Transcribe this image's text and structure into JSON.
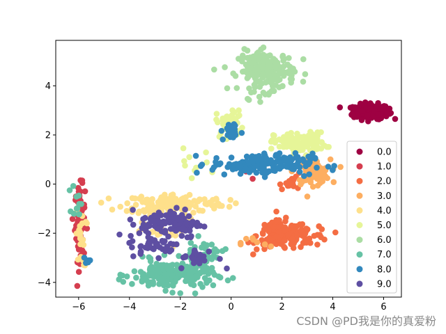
{
  "watermark": "CSDN @PD我是你的真爱粉",
  "colors": {
    "0.0": "#9e0142",
    "1.0": "#d53e4f",
    "2.0": "#f46d43",
    "3.0": "#fdae61",
    "4.0": "#fee08b",
    "5.0": "#e6f598",
    "6.0": "#abdda4",
    "7.0": "#66c2a5",
    "8.0": "#3288bd",
    "9.0": "#5e4fa2"
  },
  "chart_data": {
    "type": "scatter",
    "title": "",
    "xlabel": "",
    "ylabel": "",
    "xlim": [
      -6.9,
      6.7
    ],
    "ylim": [
      -4.6,
      5.85
    ],
    "xticks": [
      -6,
      -4,
      -2,
      0,
      2,
      4,
      6
    ],
    "yticks": [
      -4,
      -2,
      0,
      2,
      4
    ],
    "xtick_labels": [
      "−6",
      "−4",
      "−2",
      "0",
      "2",
      "4",
      "6"
    ],
    "ytick_labels": [
      "−4",
      "−2",
      "0",
      "2",
      "4"
    ],
    "legend": {
      "placement": "lower right"
    },
    "series": [
      {
        "name": "0.0",
        "clusters": [
          {
            "cx": 5.5,
            "cy": 2.95,
            "sx": 0.35,
            "sy": 0.15,
            "n": 220
          }
        ]
      },
      {
        "name": "1.0",
        "clusters": [
          {
            "cx": -5.95,
            "cy": -1.6,
            "sx": 0.1,
            "sy": 0.75,
            "n": 90
          },
          {
            "cx": 0.4,
            "cy": 0.6,
            "sx": 0.2,
            "sy": 0.15,
            "n": 6
          }
        ]
      },
      {
        "name": "2.0",
        "clusters": [
          {
            "cx": 2.0,
            "cy": -2.1,
            "sx": 0.5,
            "sy": 0.3,
            "n": 130
          },
          {
            "cx": 2.9,
            "cy": -2.1,
            "sx": 0.5,
            "sy": 0.2,
            "n": 40
          },
          {
            "cx": 2.5,
            "cy": 0.1,
            "sx": 0.3,
            "sy": 0.15,
            "n": 15
          }
        ]
      },
      {
        "name": "3.0",
        "clusters": [
          {
            "cx": 3.2,
            "cy": 0.5,
            "sx": 0.35,
            "sy": 0.25,
            "n": 90
          },
          {
            "cx": 1.0,
            "cy": -2.4,
            "sx": 0.3,
            "sy": 0.15,
            "n": 8
          }
        ]
      },
      {
        "name": "4.0",
        "clusters": [
          {
            "cx": -2.2,
            "cy": -0.8,
            "sx": 1.0,
            "sy": 0.2,
            "n": 140
          },
          {
            "cx": -3.0,
            "cy": -1.6,
            "sx": 0.6,
            "sy": 0.5,
            "n": 40
          },
          {
            "cx": -5.9,
            "cy": -2.2,
            "sx": 0.1,
            "sy": 0.6,
            "n": 20
          }
        ]
      },
      {
        "name": "5.0",
        "clusters": [
          {
            "cx": 2.7,
            "cy": 1.7,
            "sx": 0.5,
            "sy": 0.2,
            "n": 130
          },
          {
            "cx": 0.0,
            "cy": 2.5,
            "sx": 0.3,
            "sy": 0.3,
            "n": 35
          },
          {
            "cx": -1.6,
            "cy": 0.8,
            "sx": 0.4,
            "sy": 0.3,
            "n": 10
          }
        ]
      },
      {
        "name": "6.0",
        "clusters": [
          {
            "cx": 1.4,
            "cy": 4.6,
            "sx": 0.55,
            "sy": 0.4,
            "n": 200
          }
        ]
      },
      {
        "name": "7.0",
        "clusters": [
          {
            "cx": -2.3,
            "cy": -3.7,
            "sx": 0.8,
            "sy": 0.3,
            "n": 200
          },
          {
            "cx": -1.1,
            "cy": -2.9,
            "sx": 0.4,
            "sy": 0.3,
            "n": 40
          },
          {
            "cx": -6.05,
            "cy": -0.7,
            "sx": 0.1,
            "sy": 0.35,
            "n": 12
          }
        ]
      },
      {
        "name": "8.0",
        "clusters": [
          {
            "cx": 1.2,
            "cy": 0.8,
            "sx": 1.0,
            "sy": 0.22,
            "n": 160
          },
          {
            "cx": 0.0,
            "cy": 2.1,
            "sx": 0.2,
            "sy": 0.2,
            "n": 25
          },
          {
            "cx": -5.6,
            "cy": -3.1,
            "sx": 0.2,
            "sy": 0.05,
            "n": 5
          }
        ]
      },
      {
        "name": "9.0",
        "clusters": [
          {
            "cx": -2.4,
            "cy": -1.6,
            "sx": 0.6,
            "sy": 0.3,
            "n": 110
          },
          {
            "cx": -3.0,
            "cy": -2.5,
            "sx": 0.5,
            "sy": 0.2,
            "n": 40
          },
          {
            "cx": -1.3,
            "cy": -3.0,
            "sx": 0.4,
            "sy": 0.2,
            "n": 25
          }
        ]
      }
    ]
  }
}
